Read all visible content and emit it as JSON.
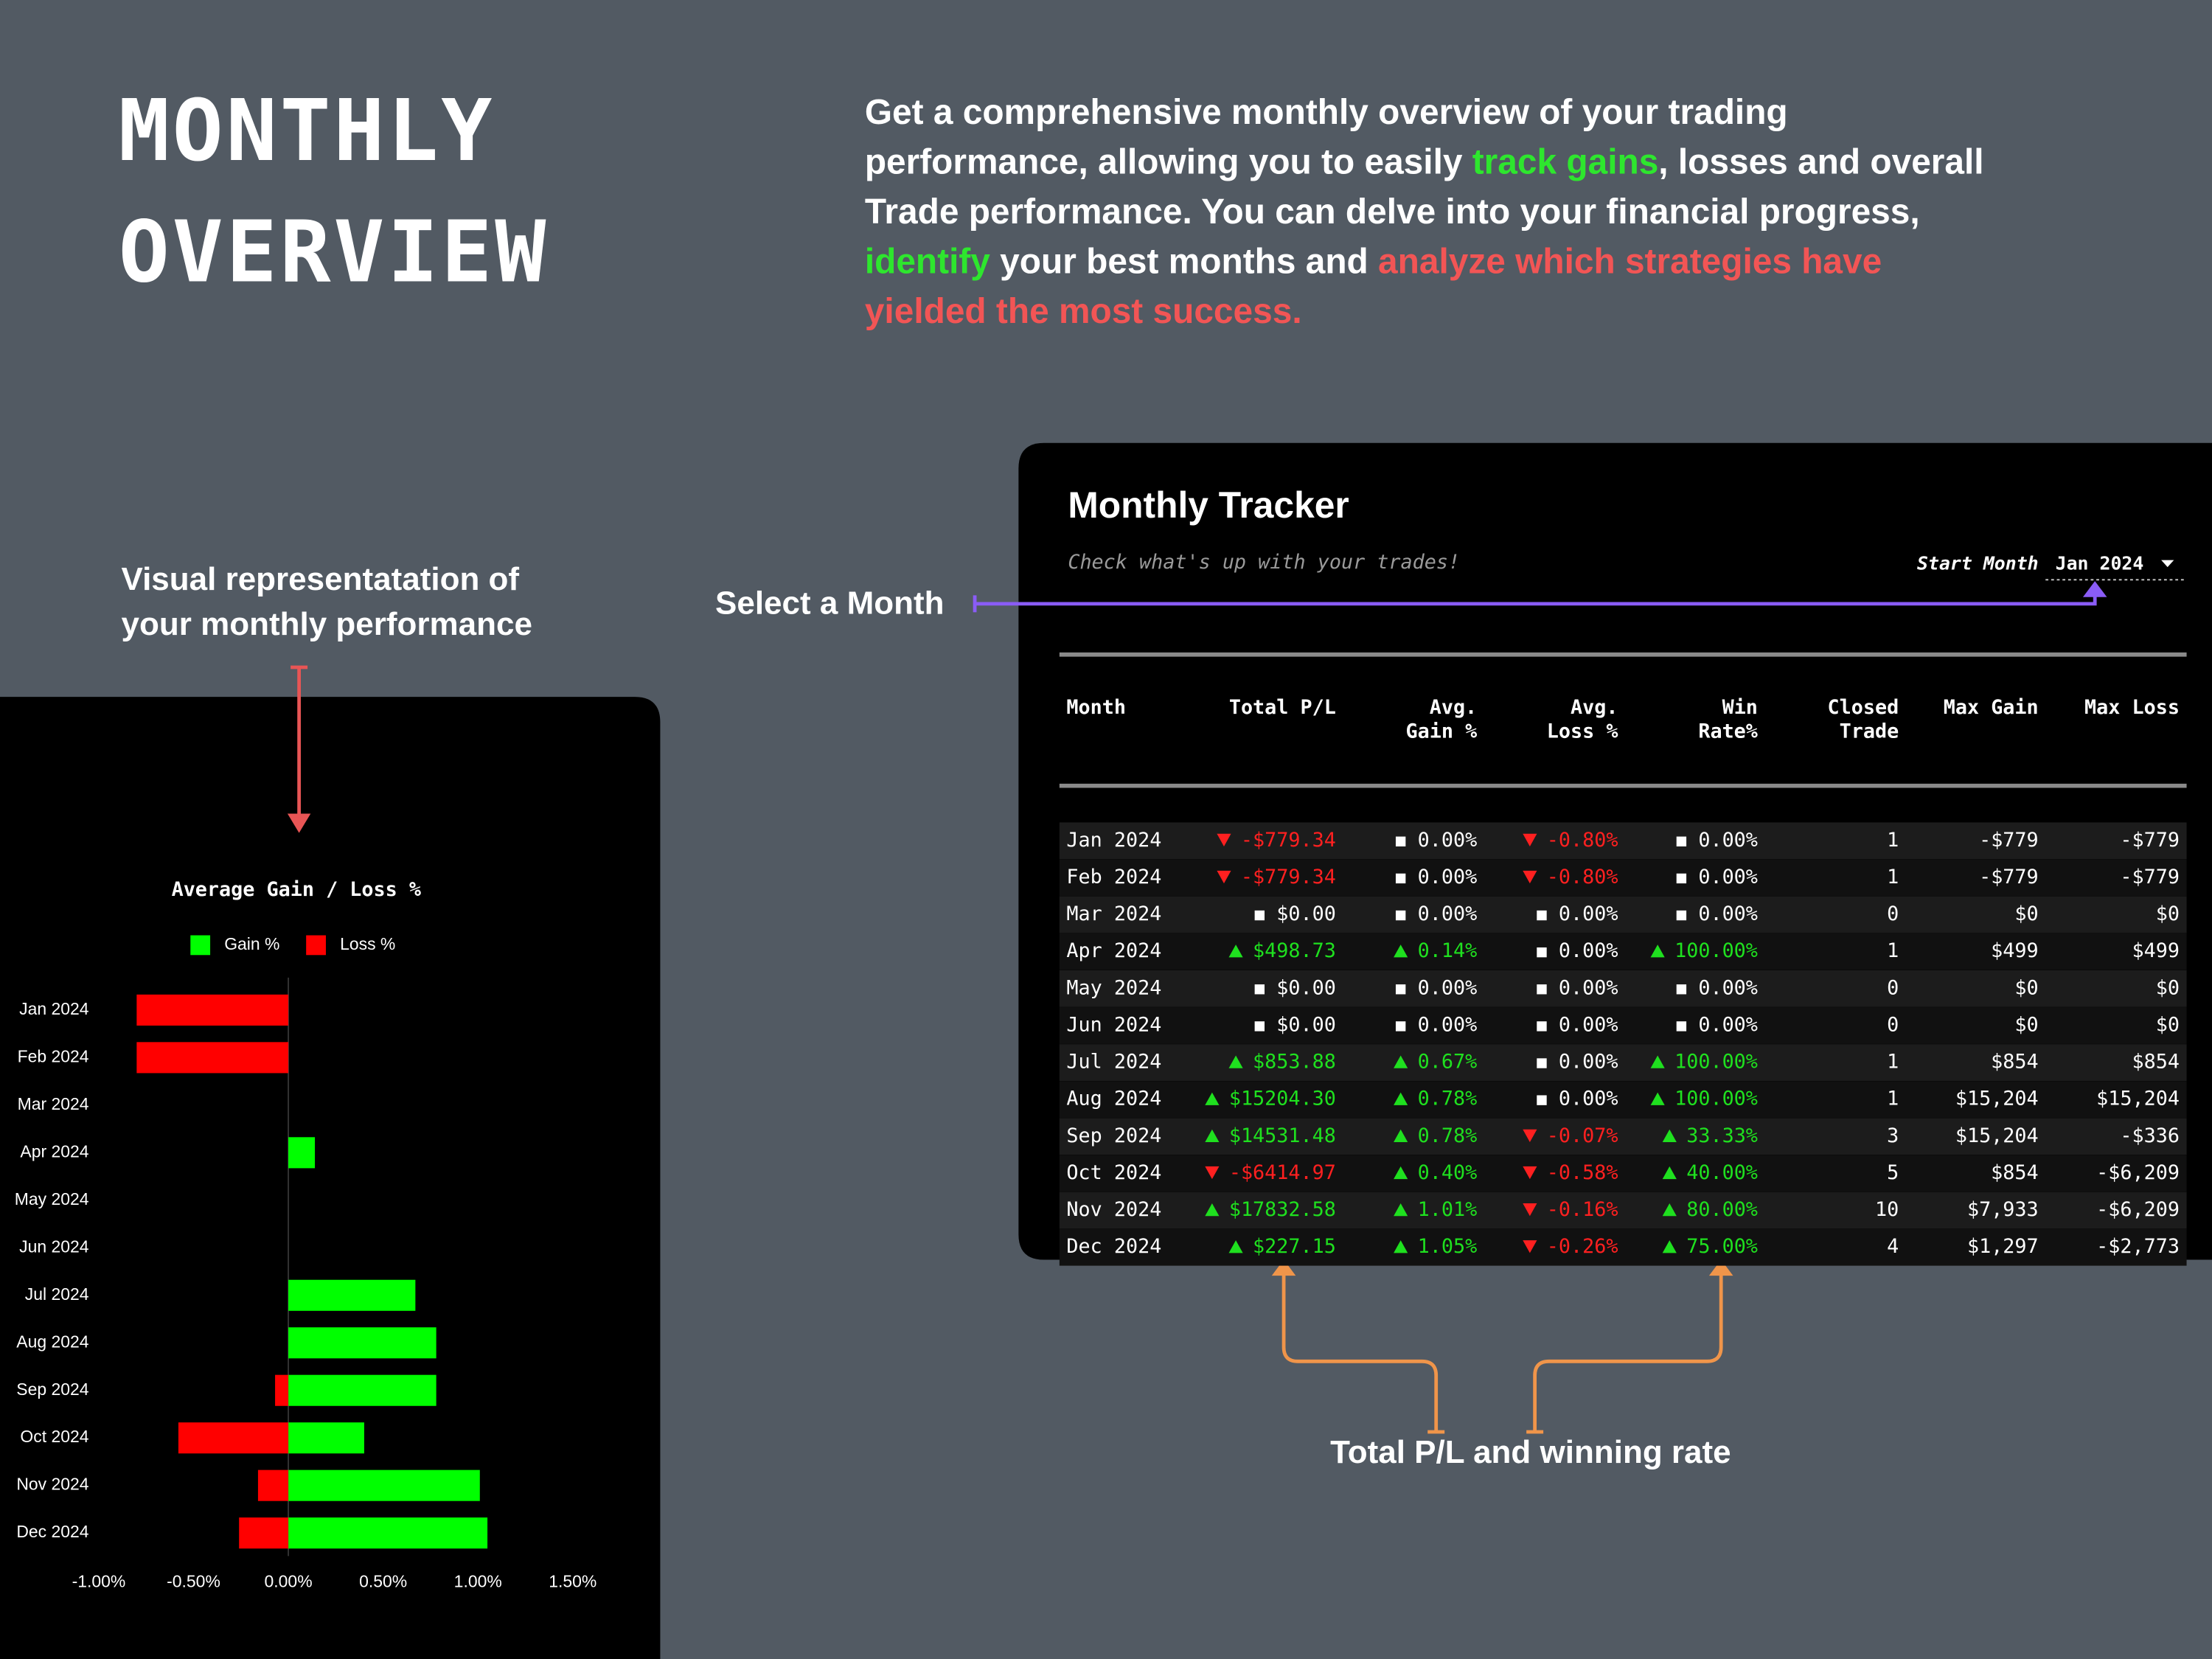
{
  "header": {
    "title_lines": [
      "MONTHLY",
      "OVERVIEW"
    ],
    "description": [
      [
        {
          "text": "Get a comprehensive monthly overview of your trading",
          "color": "#ffffff"
        }
      ],
      [
        {
          "text": "performance, allowing you to easily ",
          "color": "#ffffff"
        },
        {
          "text": "track gains",
          "color": "#2ee62e"
        },
        {
          "text": ", losses and overall",
          "color": "#ffffff"
        }
      ],
      [
        {
          "text": "Trade performance. You can delve into your financial progress,",
          "color": "#ffffff"
        }
      ],
      [
        {
          "text": "identify",
          "color": "#2ee62e"
        },
        {
          "text": " your best months and ",
          "color": "#ffffff"
        },
        {
          "text": "analyze which strategies have",
          "color": "#f25555"
        }
      ],
      [
        {
          "text": "yielded the most success.",
          "color": "#f25555"
        }
      ]
    ]
  },
  "annotations": {
    "chart_note": [
      "Visual representatation of",
      "your monthly performance"
    ],
    "select_month": "Select a Month",
    "table_note": "Total P/L and winning rate"
  },
  "tracker": {
    "title": "Monthly Tracker",
    "subtitle": "Check what's up with your trades!",
    "start_month_label": "Start Month",
    "start_month": "Jan 2024",
    "columns": [
      [
        "Month"
      ],
      [
        "Total P/L"
      ],
      [
        "Avg.",
        "Gain %"
      ],
      [
        "Avg.",
        "Loss %"
      ],
      [
        "Win",
        "Rate%"
      ],
      [
        "Closed",
        "Trade"
      ],
      [
        "Max Gain"
      ],
      [
        "Max Loss"
      ]
    ],
    "rows": [
      [
        "Jan 2024",
        "-$779.34",
        "0.00%",
        "-0.80%",
        "0.00%",
        "1",
        "-$779",
        "-$779"
      ],
      [
        "Feb 2024",
        "-$779.34",
        "0.00%",
        "-0.80%",
        "0.00%",
        "1",
        "-$779",
        "-$779"
      ],
      [
        "Mar 2024",
        "$0.00",
        "0.00%",
        "0.00%",
        "0.00%",
        "0",
        "$0",
        "$0"
      ],
      [
        "Apr 2024",
        "$498.73",
        "0.14%",
        "0.00%",
        "100.00%",
        "1",
        "$499",
        "$499"
      ],
      [
        "May 2024",
        "$0.00",
        "0.00%",
        "0.00%",
        "0.00%",
        "0",
        "$0",
        "$0"
      ],
      [
        "Jun 2024",
        "$0.00",
        "0.00%",
        "0.00%",
        "0.00%",
        "0",
        "$0",
        "$0"
      ],
      [
        "Jul 2024",
        "$853.88",
        "0.67%",
        "0.00%",
        "100.00%",
        "1",
        "$854",
        "$854"
      ],
      [
        "Aug 2024",
        "$15204.30",
        "0.78%",
        "0.00%",
        "100.00%",
        "1",
        "$15,204",
        "$15,204"
      ],
      [
        "Sep 2024",
        "$14531.48",
        "0.78%",
        "-0.07%",
        "33.33%",
        "3",
        "$15,204",
        "-$336"
      ],
      [
        "Oct 2024",
        "-$6414.97",
        "0.40%",
        "-0.58%",
        "40.00%",
        "5",
        "$854",
        "-$6,209"
      ],
      [
        "Nov 2024",
        "$17832.58",
        "1.01%",
        "-0.16%",
        "80.00%",
        "10",
        "$7,933",
        "-$6,209"
      ],
      [
        "Dec 2024",
        "$227.15",
        "1.05%",
        "-0.26%",
        "75.00%",
        "4",
        "$1,297",
        "-$2,773"
      ]
    ]
  },
  "chart_data": {
    "type": "bar",
    "title": "Average Gain / Loss %",
    "categories": [
      "Jan 2024",
      "Feb 2024",
      "Mar 2024",
      "Apr 2024",
      "May 2024",
      "Jun 2024",
      "Jul 2024",
      "Aug 2024",
      "Sep 2024",
      "Oct 2024",
      "Nov 2024",
      "Dec 2024"
    ],
    "series": [
      {
        "name": "Gain %",
        "color": "#00ff00",
        "values": [
          0,
          0,
          0,
          0.14,
          0,
          0,
          0.67,
          0.78,
          0.78,
          0.4,
          1.01,
          1.05
        ]
      },
      {
        "name": "Loss %",
        "color": "#ff0000",
        "values": [
          -0.8,
          -0.8,
          0,
          0,
          0,
          0,
          0,
          0,
          -0.07,
          -0.58,
          -0.16,
          -0.26
        ]
      }
    ],
    "xlim": [
      -1,
      1.5
    ],
    "xticks": [
      {
        "value": -1,
        "label": "-1.00%"
      },
      {
        "value": -0.5,
        "label": "-0.50%"
      },
      {
        "value": 0,
        "label": "0.00%"
      },
      {
        "value": 0.5,
        "label": "0.50%"
      },
      {
        "value": 1,
        "label": "1.00%"
      },
      {
        "value": 1.5,
        "label": "1.50%"
      }
    ]
  }
}
